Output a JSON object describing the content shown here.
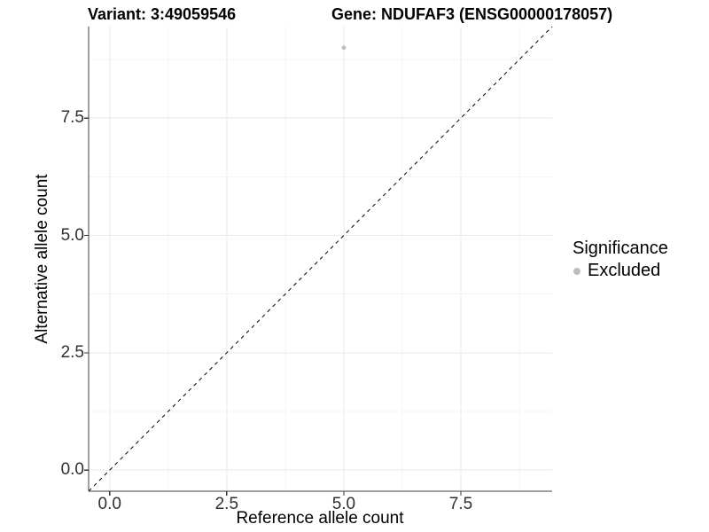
{
  "chart_data": {
    "type": "scatter",
    "title_left": "Variant: 3:49059546",
    "title_right": "Gene: NDUFAF3 (ENSG00000178057)",
    "xlabel": "Reference allele count",
    "ylabel": "Alternative allele count",
    "xlim": [
      -0.45,
      9.45
    ],
    "ylim": [
      -0.45,
      9.45
    ],
    "x_ticks": {
      "values": [
        0,
        2.5,
        5,
        7.5
      ],
      "labels": [
        "0.0",
        "2.5",
        "5.0",
        "7.5"
      ]
    },
    "y_ticks": {
      "values": [
        0,
        2.5,
        5,
        7.5
      ],
      "labels": [
        "0.0",
        "2.5",
        "5.0",
        "7.5"
      ]
    },
    "minor_breaks": [
      1.25,
      3.75,
      6.25,
      8.75
    ],
    "grid": "major+minor",
    "series": [
      {
        "name": "Excluded",
        "color": "#bebebe",
        "points": [
          {
            "x": 5,
            "y": 9
          }
        ]
      }
    ],
    "reference_line": {
      "type": "abline",
      "slope": 1,
      "intercept": 0,
      "linetype": "dashed",
      "color": "#000000"
    },
    "legend": {
      "title": "Significance",
      "position": "right",
      "entries": [
        {
          "label": "Excluded",
          "color": "#bebebe",
          "marker": "circle"
        }
      ]
    },
    "colors": {
      "point": "#bebebe",
      "grid_major": "#e9e9e9",
      "grid_minor": "#f4f4f4",
      "axis_line": "#404040",
      "tick_mark": "#333333",
      "tick_text": "#303030",
      "background": "#ffffff"
    }
  }
}
